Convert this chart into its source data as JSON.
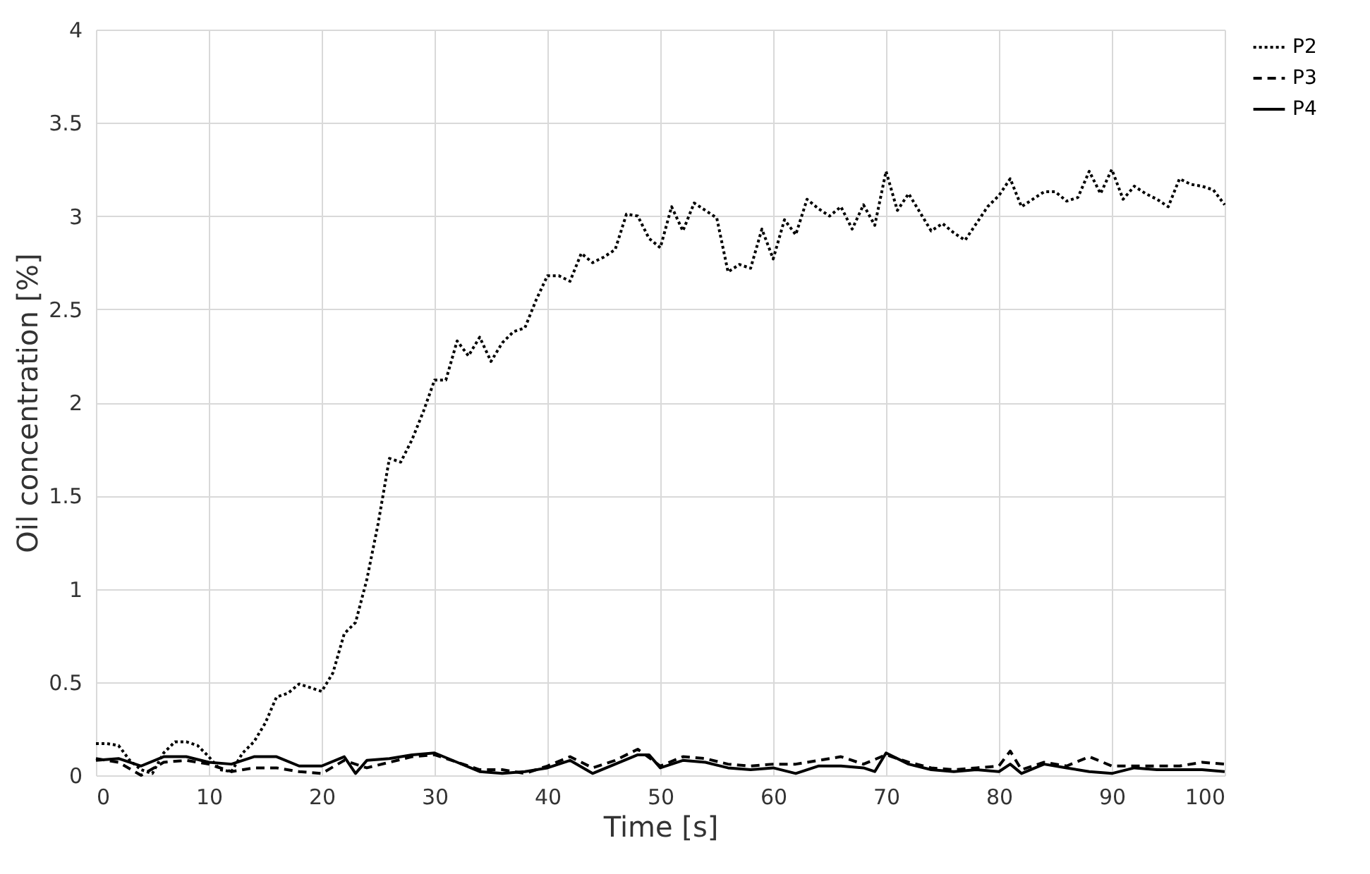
{
  "chart_data": {
    "type": "line",
    "xlabel": "Time [s]",
    "ylabel": "Oil concentration [%]",
    "xlim": [
      0,
      100
    ],
    "xticks": [
      0,
      10,
      20,
      30,
      40,
      50,
      60,
      70,
      80,
      90,
      100
    ],
    "ylim": [
      0,
      4
    ],
    "yticks": [
      0,
      0.5,
      1,
      1.5,
      2,
      2.5,
      3,
      3.5,
      4
    ],
    "grid": true,
    "legend": "right",
    "marker": "none",
    "series": [
      {
        "name": "P2",
        "color": "#000000",
        "line_style": "dotted",
        "x": [
          0,
          1,
          2,
          3,
          4,
          5,
          6,
          7,
          8,
          9,
          10,
          11,
          12,
          13,
          14,
          15,
          16,
          17,
          18,
          19,
          20,
          21,
          22,
          23,
          24,
          25,
          26,
          27,
          28,
          29,
          30,
          31,
          32,
          33,
          34,
          35,
          36,
          37,
          38,
          39,
          40,
          41,
          42,
          43,
          44,
          45,
          46,
          47,
          48,
          49,
          50,
          51,
          52,
          53,
          54,
          55,
          56,
          57,
          58,
          59,
          60,
          61,
          62,
          63,
          64,
          65,
          66,
          67,
          68,
          69,
          70,
          71,
          72,
          73,
          74,
          75,
          76,
          77,
          78,
          79,
          80,
          81,
          82,
          83,
          84,
          85,
          86,
          87,
          88,
          89,
          90,
          91,
          92,
          93,
          94,
          95,
          96,
          97,
          98,
          99,
          100
        ],
        "values": [
          0.17,
          0.17,
          0.16,
          0.08,
          0.03,
          0.01,
          0.12,
          0.18,
          0.18,
          0.16,
          0.1,
          0.03,
          0.02,
          0.12,
          0.18,
          0.28,
          0.42,
          0.44,
          0.49,
          0.47,
          0.45,
          0.55,
          0.76,
          0.82,
          1.05,
          1.35,
          1.7,
          1.68,
          1.8,
          1.95,
          2.12,
          2.12,
          2.33,
          2.25,
          2.35,
          2.22,
          2.32,
          2.38,
          2.4,
          2.55,
          2.68,
          2.68,
          2.65,
          2.8,
          2.75,
          2.78,
          2.82,
          3.01,
          3,
          2.88,
          2.83,
          3.05,
          2.92,
          3.07,
          3.03,
          2.99,
          2.7,
          2.74,
          2.72,
          2.93,
          2.77,
          2.98,
          2.9,
          3.09,
          3.04,
          3,
          3.05,
          2.93,
          3.06,
          2.95,
          3.24,
          3.03,
          3.12,
          3.02,
          2.92,
          2.96,
          2.91,
          2.87,
          2.96,
          3.05,
          3.11,
          3.2,
          3.05,
          3.09,
          3.13,
          3.13,
          3.08,
          3.1,
          3.24,
          3.12,
          3.25,
          3.09,
          3.16,
          3.12,
          3.09,
          3.05,
          3.2,
          3.17,
          3.16,
          3.14,
          3.06
        ]
      },
      {
        "name": "P3",
        "color": "#000000",
        "line_style": "dashed",
        "x": [
          0,
          2,
          4,
          6,
          8,
          10,
          12,
          14,
          16,
          18,
          20,
          22,
          24,
          26,
          28,
          30,
          32,
          34,
          36,
          38,
          40,
          42,
          44,
          46,
          48,
          50,
          52,
          54,
          56,
          58,
          60,
          62,
          64,
          66,
          68,
          70,
          72,
          74,
          76,
          78,
          80,
          81,
          82,
          84,
          86,
          88,
          90,
          92,
          94,
          96,
          98,
          100
        ],
        "values": [
          0.09,
          0.07,
          0,
          0.07,
          0.08,
          0.06,
          0.02,
          0.04,
          0.04,
          0.02,
          0.01,
          0.08,
          0.04,
          0.07,
          0.1,
          0.11,
          0.07,
          0.03,
          0.03,
          0.01,
          0.05,
          0.1,
          0.04,
          0.08,
          0.14,
          0.05,
          0.1,
          0.09,
          0.06,
          0.05,
          0.06,
          0.06,
          0.08,
          0.1,
          0.06,
          0.11,
          0.07,
          0.04,
          0.03,
          0.04,
          0.05,
          0.13,
          0.03,
          0.07,
          0.05,
          0.1,
          0.05,
          0.05,
          0.05,
          0.05,
          0.07,
          0.06
        ]
      },
      {
        "name": "P4",
        "color": "#000000",
        "line_style": "solid",
        "x": [
          0,
          2,
          4,
          6,
          8,
          10,
          12,
          14,
          16,
          18,
          20,
          22,
          23,
          24,
          26,
          28,
          30,
          32,
          34,
          36,
          38,
          40,
          42,
          44,
          46,
          48,
          49,
          50,
          52,
          54,
          56,
          58,
          60,
          62,
          64,
          66,
          68,
          69,
          70,
          72,
          74,
          76,
          78,
          80,
          81,
          82,
          84,
          86,
          88,
          90,
          92,
          94,
          96,
          98,
          100
        ],
        "values": [
          0.08,
          0.09,
          0.05,
          0.1,
          0.1,
          0.07,
          0.06,
          0.1,
          0.1,
          0.05,
          0.05,
          0.1,
          0.01,
          0.08,
          0.09,
          0.11,
          0.12,
          0.07,
          0.02,
          0.01,
          0.02,
          0.04,
          0.08,
          0.01,
          0.06,
          0.11,
          0.11,
          0.04,
          0.08,
          0.07,
          0.04,
          0.03,
          0.04,
          0.01,
          0.05,
          0.05,
          0.04,
          0.02,
          0.12,
          0.06,
          0.03,
          0.02,
          0.03,
          0.02,
          0.06,
          0.01,
          0.06,
          0.04,
          0.02,
          0.01,
          0.04,
          0.03,
          0.03,
          0.03,
          0.02
        ]
      }
    ]
  }
}
